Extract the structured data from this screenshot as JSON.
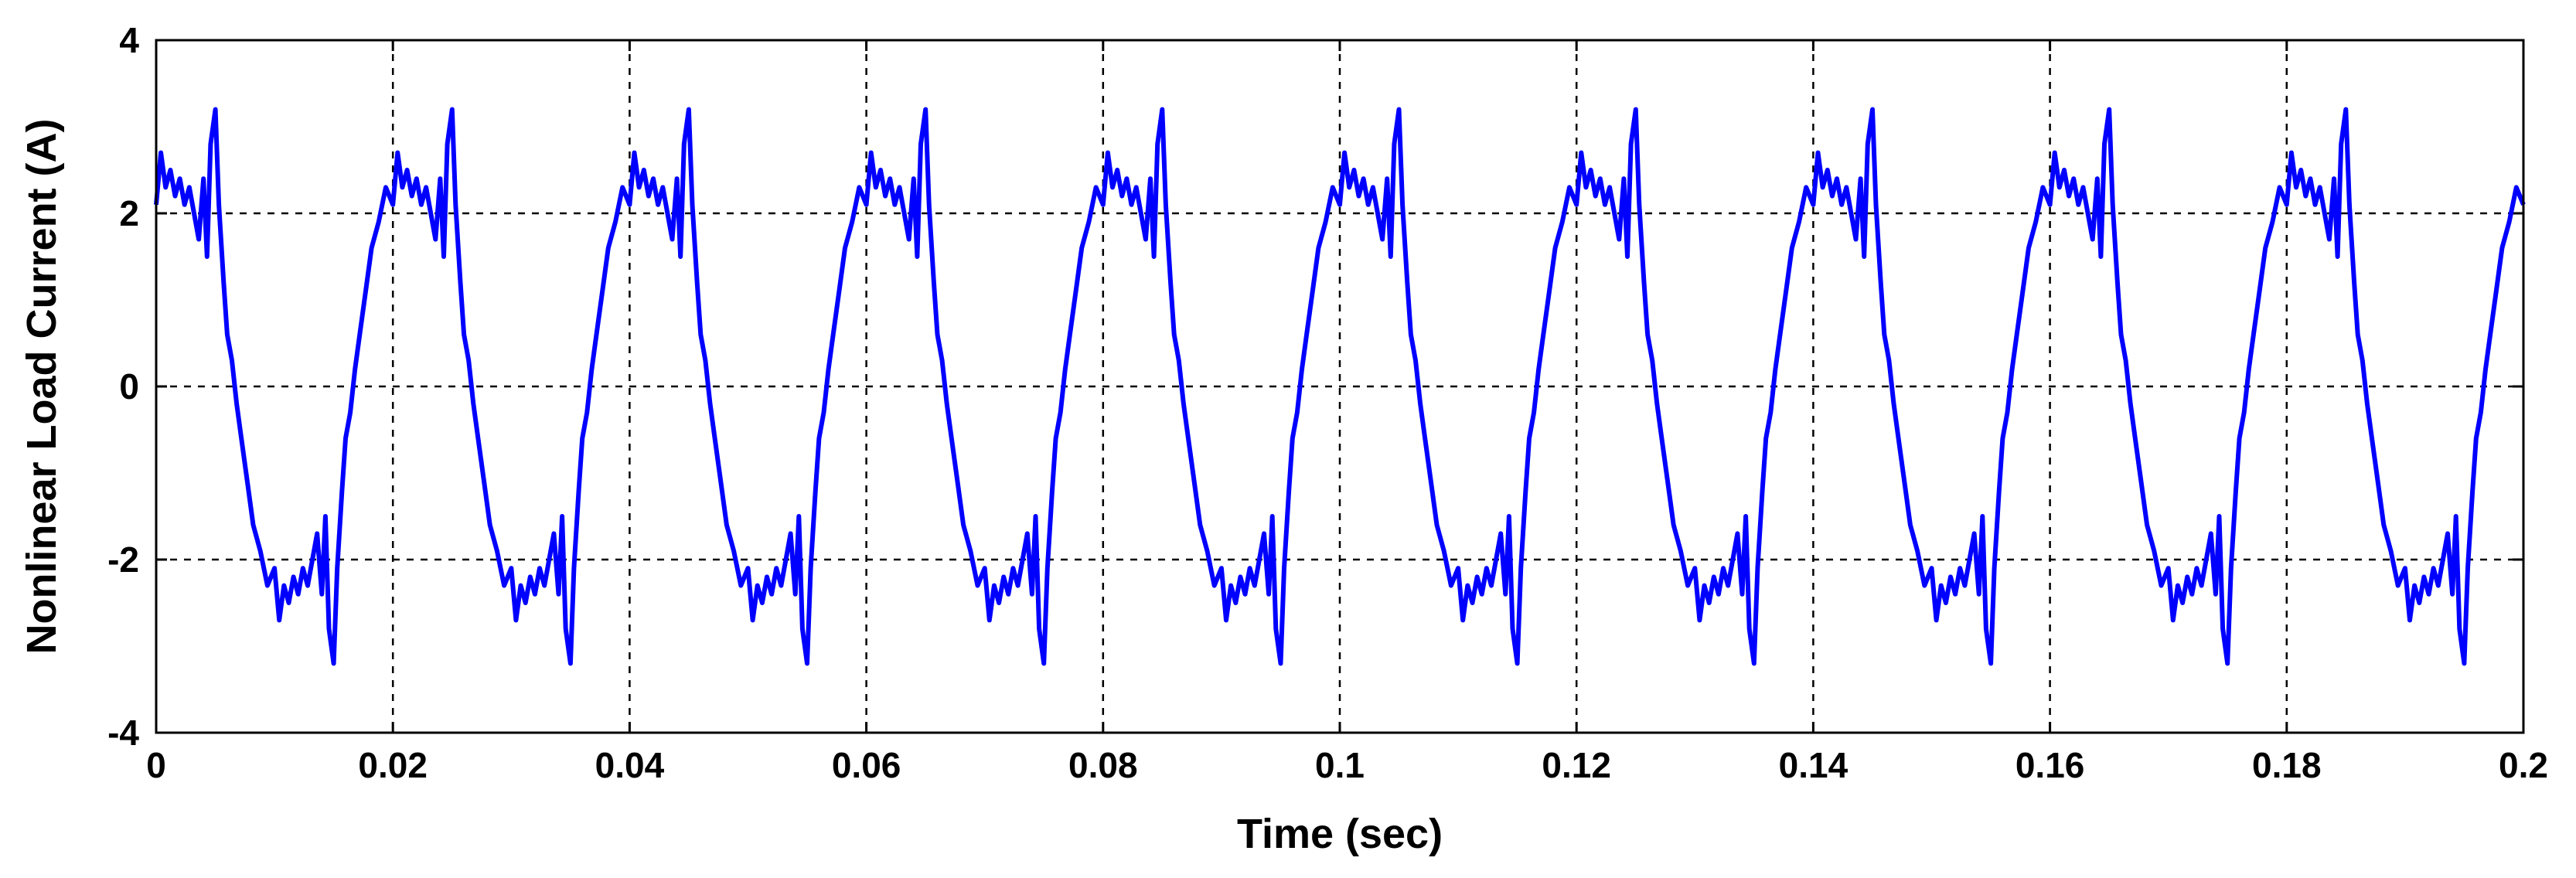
{
  "chart_data": {
    "type": "line",
    "title": "",
    "xlabel": "Time (sec)",
    "ylabel": "Nonlinear Load Current (A)",
    "xlim": [
      0,
      0.2
    ],
    "ylim": [
      -4,
      4
    ],
    "xticks": [
      0,
      0.02,
      0.04,
      0.06,
      0.08,
      0.1,
      0.12,
      0.14,
      0.16,
      0.18,
      0.2
    ],
    "xtick_labels": [
      "0",
      "0.02",
      "0.04",
      "0.06",
      "0.08",
      "0.1",
      "0.12",
      "0.14",
      "0.16",
      "0.18",
      "0.2"
    ],
    "yticks": [
      -4,
      -2,
      0,
      2,
      4
    ],
    "ytick_labels": [
      "-4",
      "-2",
      "0",
      "2",
      "4"
    ],
    "grid": true,
    "legend": "none",
    "line_color": "#0000ff",
    "period": 0.02,
    "one_period": {
      "t": [
        0,
        0.0004,
        0.0008,
        0.0012,
        0.0016,
        0.002,
        0.0024,
        0.0028,
        0.0032,
        0.0036,
        0.004,
        0.0043,
        0.0046,
        0.005,
        0.0053,
        0.0057,
        0.006,
        0.0064,
        0.0068,
        0.0072,
        0.0077,
        0.0082,
        0.0088,
        0.0094,
        0.01,
        0.0104,
        0.0108,
        0.0112,
        0.0116,
        0.012,
        0.0124,
        0.0128,
        0.0132,
        0.0136,
        0.014,
        0.0143,
        0.0146,
        0.015,
        0.0153,
        0.0157,
        0.016,
        0.0164,
        0.0168,
        0.0172,
        0.0177,
        0.0182,
        0.0188,
        0.0194,
        0.02
      ],
      "y": [
        2.1,
        2.7,
        2.3,
        2.5,
        2.2,
        2.4,
        2.1,
        2.3,
        2.0,
        1.7,
        2.4,
        1.5,
        2.8,
        3.2,
        2.1,
        1.2,
        0.6,
        0.3,
        -0.2,
        -0.6,
        -1.1,
        -1.6,
        -1.9,
        -2.3,
        -2.1,
        -2.7,
        -2.3,
        -2.5,
        -2.2,
        -2.4,
        -2.1,
        -2.3,
        -2.0,
        -1.7,
        -2.4,
        -1.5,
        -2.8,
        -3.2,
        -2.1,
        -1.2,
        -0.6,
        -0.3,
        0.2,
        0.6,
        1.1,
        1.6,
        1.9,
        2.3,
        2.1
      ]
    }
  }
}
